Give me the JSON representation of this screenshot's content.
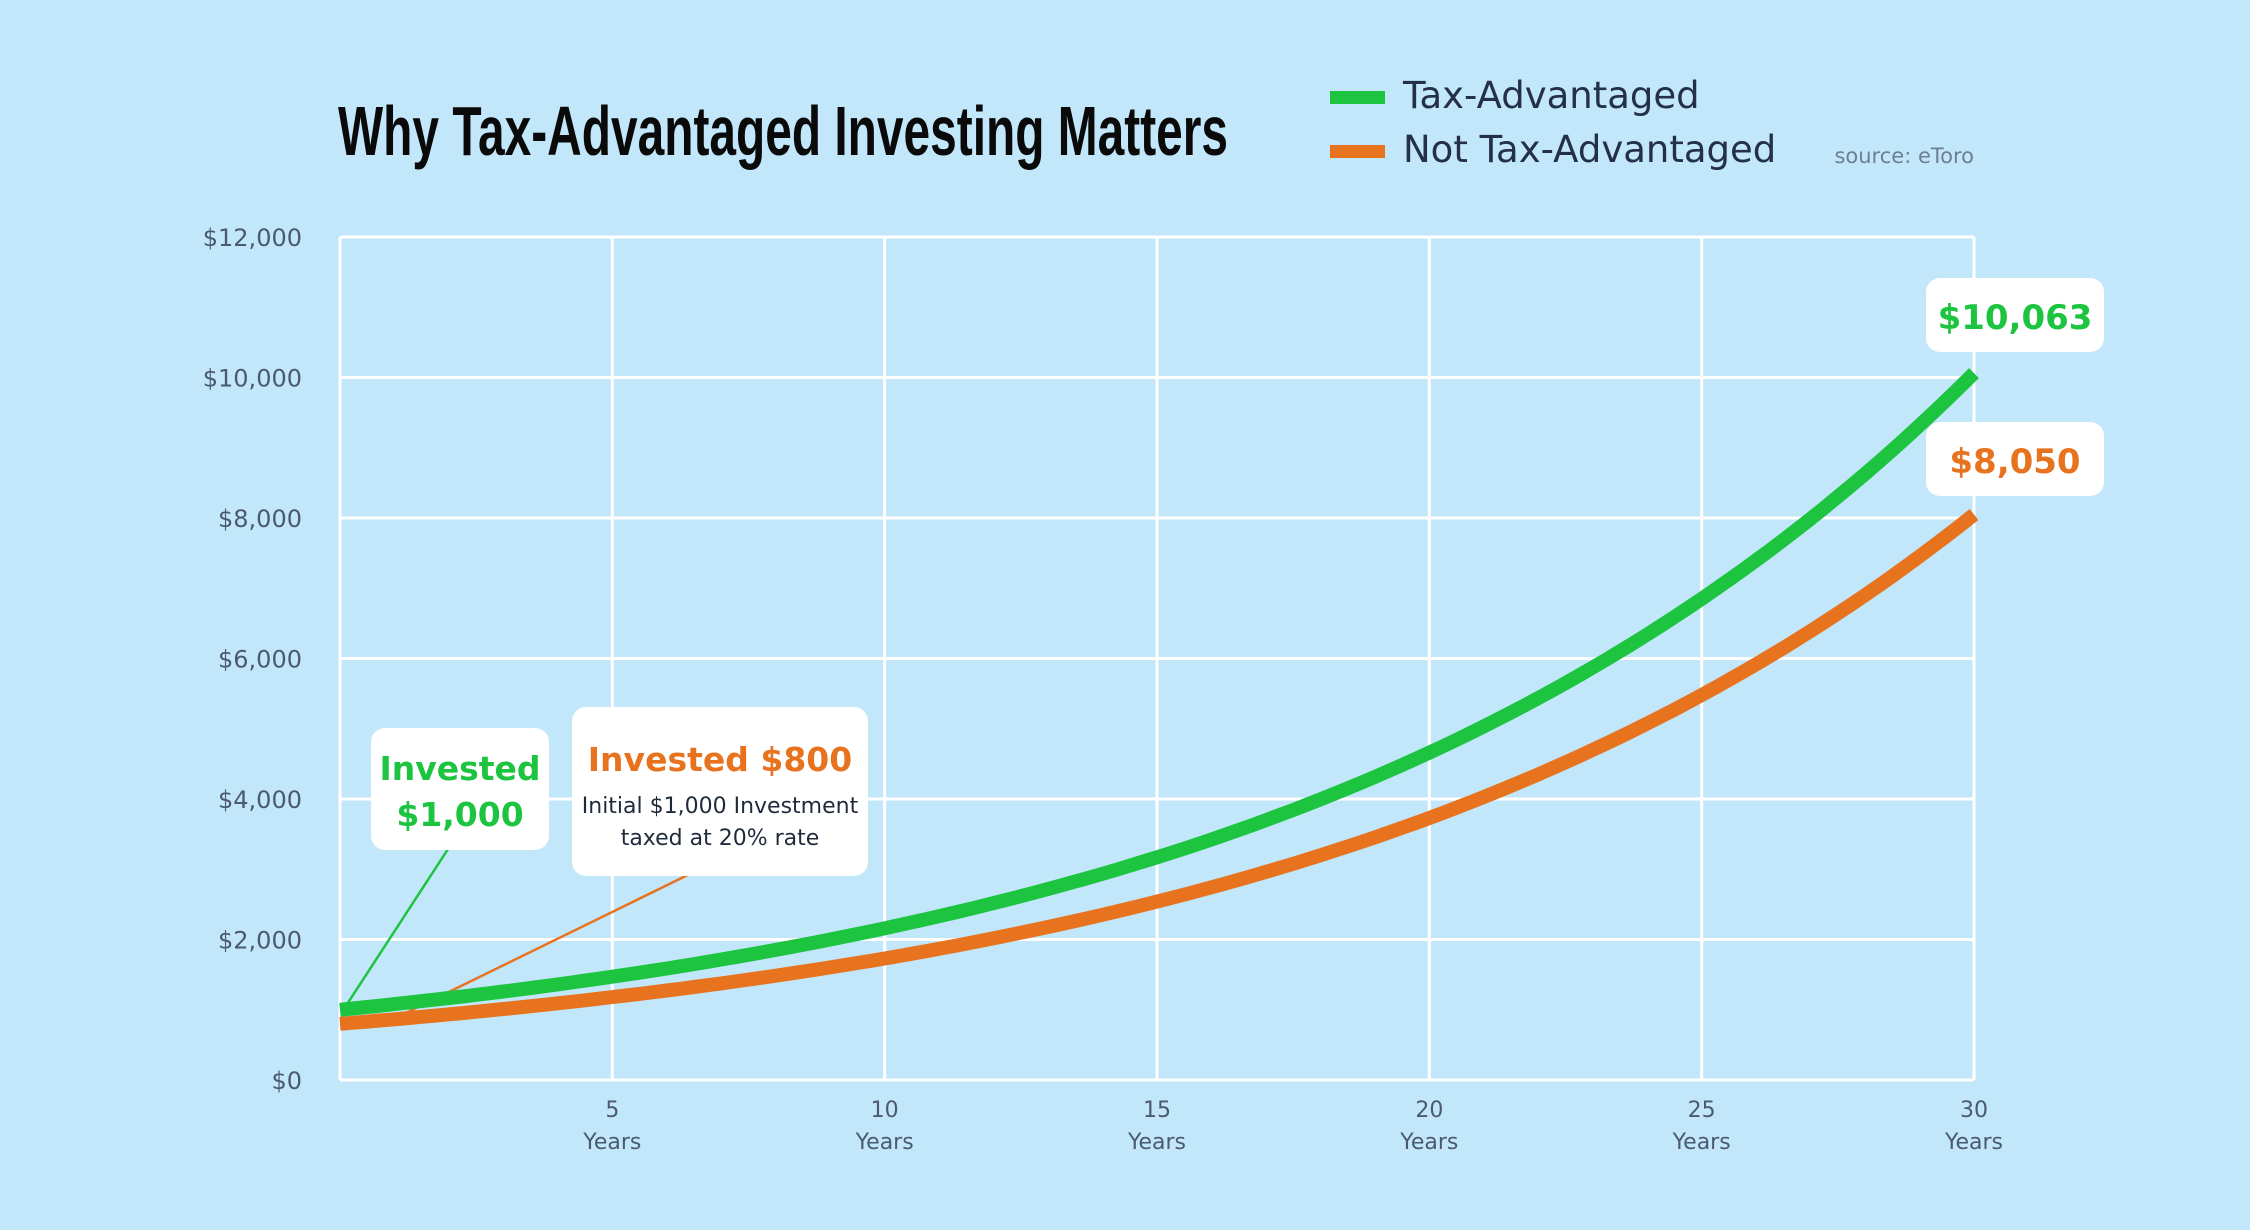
{
  "colors": {
    "background": "#c2e7fa",
    "grid": "#ffffff",
    "tax_advantaged": "#1cc43f",
    "not_tax_advantaged": "#e8731f",
    "title": "#0a0a0a",
    "legend_text": "#24304a",
    "axis_text": "#4b5a6c",
    "source_text": "#6f7f92",
    "note_text": "#1f2a3b",
    "callout_bg": "#ffffff"
  },
  "chart_data": {
    "type": "line",
    "title": "Why Tax-Advantaged Investing Matters",
    "source": "source: eToro",
    "xlabel": "",
    "ylabel": "",
    "xlim": [
      0,
      30
    ],
    "ylim": [
      0,
      12000
    ],
    "grid": true,
    "legend_position": "top",
    "y_ticks": [
      {
        "value": 0,
        "label": "$0"
      },
      {
        "value": 2000,
        "label": "$2,000"
      },
      {
        "value": 4000,
        "label": "$4,000"
      },
      {
        "value": 6000,
        "label": "$6,000"
      },
      {
        "value": 8000,
        "label": "$8,000"
      },
      {
        "value": 10000,
        "label": "$10,000"
      },
      {
        "value": 12000,
        "label": "$12,000"
      }
    ],
    "x_ticks": [
      {
        "value": 5,
        "number": "5",
        "unit": "Years"
      },
      {
        "value": 10,
        "number": "10",
        "unit": "Years"
      },
      {
        "value": 15,
        "number": "15",
        "unit": "Years"
      },
      {
        "value": 20,
        "number": "20",
        "unit": "Years"
      },
      {
        "value": 25,
        "number": "25",
        "unit": "Years"
      },
      {
        "value": 30,
        "number": "30",
        "unit": "Years"
      }
    ],
    "x": [
      0,
      5,
      10,
      15,
      20,
      25,
      30
    ],
    "series": [
      {
        "name": "Tax-Advantaged",
        "color": "#1cc43f",
        "values": [
          1000,
          1470,
          2160,
          3170,
          4660,
          6850,
          10063
        ],
        "end_label": "$10,063",
        "start_label": [
          "Invested",
          "$1,000"
        ]
      },
      {
        "name": "Not Tax-Advantaged",
        "color": "#e8731f",
        "values": [
          800,
          1180,
          1730,
          2540,
          3730,
          5480,
          8050
        ],
        "end_label": "$8,050",
        "start_label": [
          "Invested $800"
        ],
        "note": [
          "Initial $1,000 Investment",
          "taxed at 20% rate"
        ]
      }
    ]
  }
}
